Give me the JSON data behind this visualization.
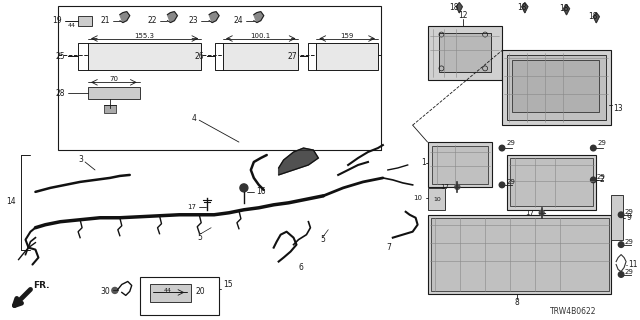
{
  "diagram_code": "TRW4B0622",
  "bg_color": "#ffffff",
  "line_color": "#1a1a1a",
  "fig_width": 6.4,
  "fig_height": 3.2,
  "dpi": 100
}
